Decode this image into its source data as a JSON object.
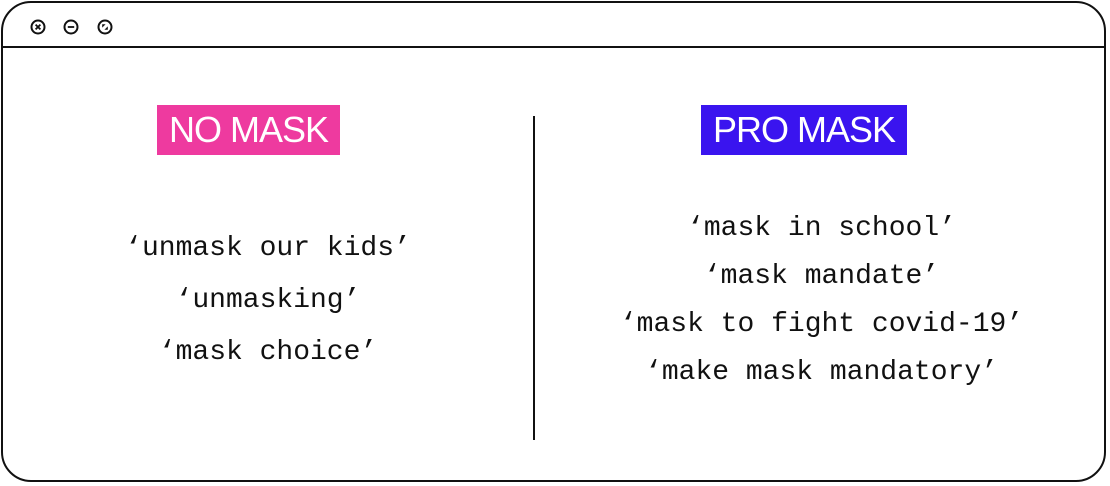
{
  "window": {
    "controls": [
      {
        "name": "close",
        "icon": "close-icon"
      },
      {
        "name": "minimize",
        "icon": "minimize-icon"
      },
      {
        "name": "maximize",
        "icon": "maximize-icon"
      }
    ]
  },
  "left_panel": {
    "title": "NO MASK",
    "title_color": "#ee3a9f",
    "terms": [
      "‘unmask our kids’",
      "‘unmasking’",
      "‘mask choice’"
    ]
  },
  "right_panel": {
    "title": "PRO MASK",
    "title_color": "#3a14ef",
    "terms": [
      "‘mask in school’",
      "‘mask mandate’",
      "‘mask to fight covid-19’",
      "‘make mask mandatory’"
    ]
  }
}
